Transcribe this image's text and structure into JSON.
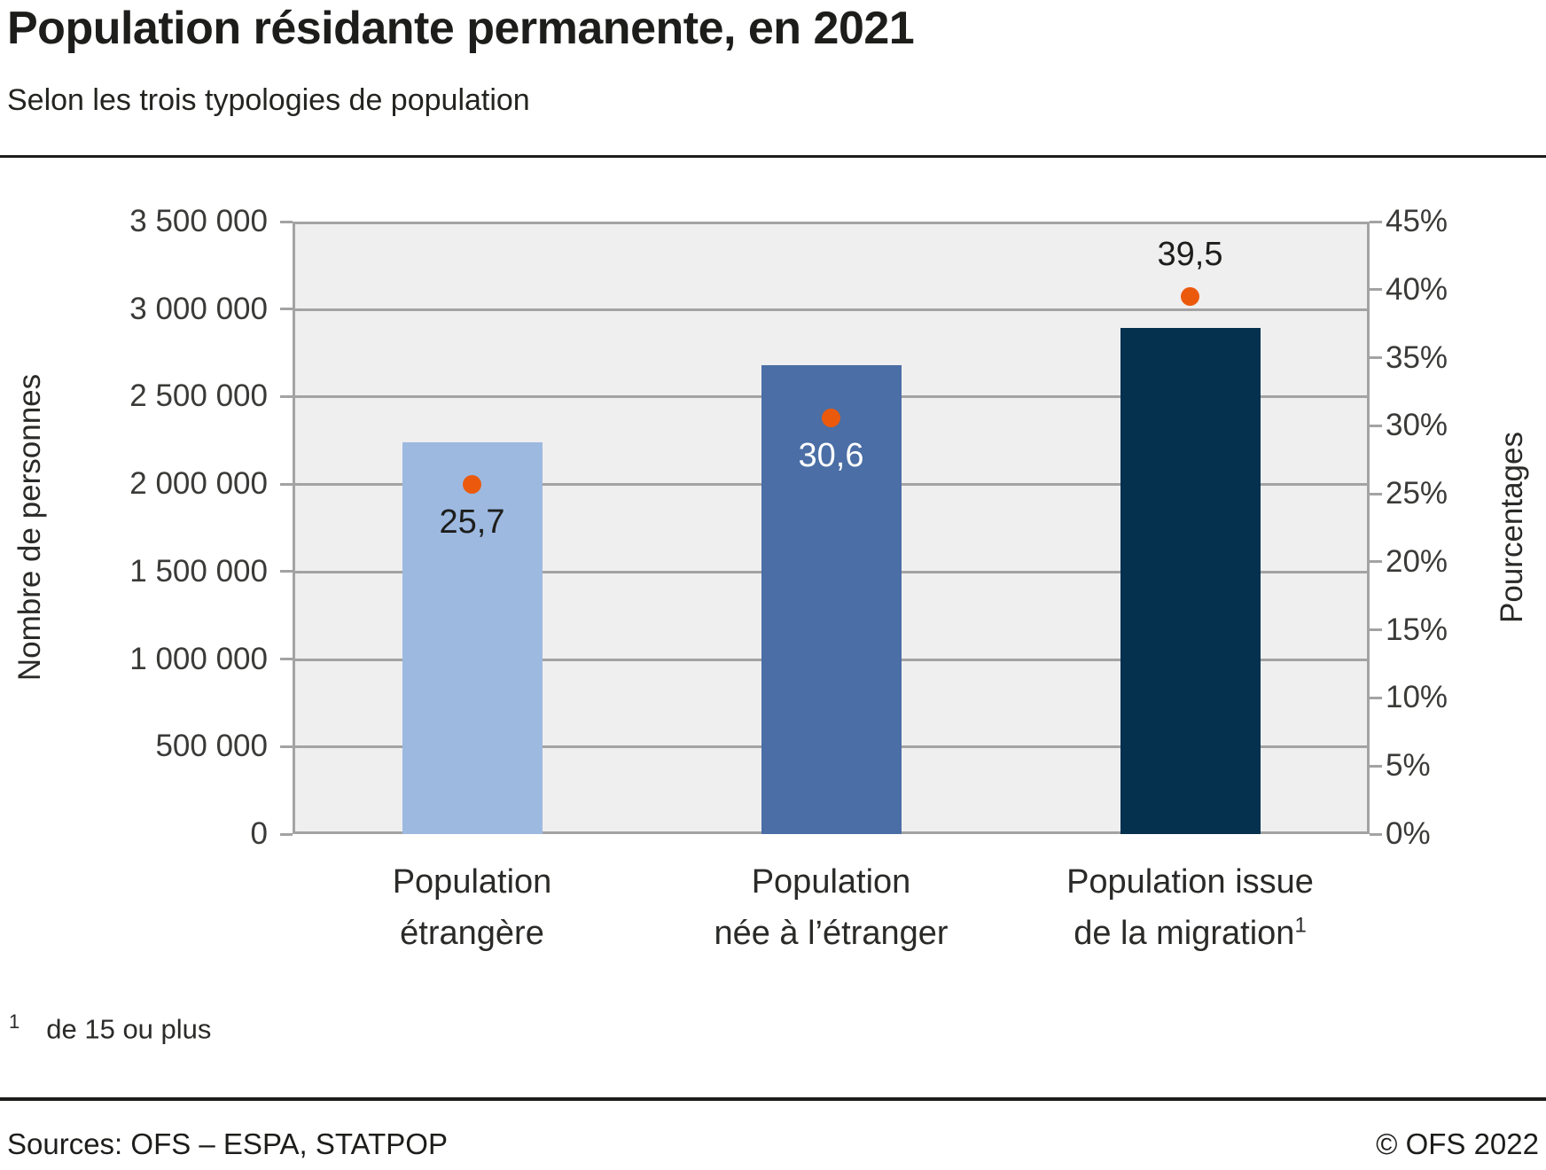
{
  "header": {
    "title": "Population résidante permanente, en 2021",
    "subtitle": "Selon les trois typologies de population"
  },
  "chart_data": {
    "type": "bar",
    "title": "Population résidante permanente, en 2021",
    "subtitle": "Selon les trois typologies de population",
    "categories": [
      {
        "line1": "Population",
        "line2": "étrangère",
        "sup": ""
      },
      {
        "line1": "Population",
        "line2": "née à l’étranger",
        "sup": ""
      },
      {
        "line1": "Population issue",
        "line2": "de la migration",
        "sup": "1"
      }
    ],
    "series": [
      {
        "name": "Nombre de personnes",
        "type": "bar",
        "axis": "left",
        "values": [
          2240000,
          2680000,
          2890000
        ]
      },
      {
        "name": "Pourcentages",
        "type": "point",
        "axis": "right",
        "values": [
          25.7,
          30.6,
          39.5
        ]
      }
    ],
    "point_labels": [
      "25,7",
      "30,6",
      "39,5"
    ],
    "point_label_side": [
      "below",
      "below",
      "above"
    ],
    "point_label_colors": [
      "#1d1d1b",
      "#ffffff",
      "#1d1d1b"
    ],
    "bar_colors": [
      "#9db9e0",
      "#4a6ea5",
      "#05304e"
    ],
    "left_axis": {
      "label": "Nombre de personnes",
      "min": 0,
      "max": 3500000,
      "step": 500000,
      "tick_labels": [
        "3 500 000",
        "3 000 000",
        "2 500 000",
        "2 000 000",
        "1 500 000",
        "1 000 000",
        "500 000",
        "0"
      ]
    },
    "right_axis": {
      "label": "Pourcentages",
      "min": 0,
      "max": 45,
      "step": 5,
      "tick_labels": [
        "45%",
        "40%",
        "35%",
        "30%",
        "25%",
        "20%",
        "15%",
        "10%",
        "5%",
        "0%"
      ]
    },
    "grid": "horizontal gridlines at left-axis 500 000 steps",
    "legend": "none"
  },
  "colors": {
    "plot_background": "#efefef",
    "grid_line": "#a3a3a3",
    "dot_orange": "#eb5a0c",
    "rule_black": "#1d1d1b"
  },
  "footnote": {
    "marker": "1",
    "text": "de 15 ou plus"
  },
  "footer": {
    "sources": "Sources: OFS – ESPA, STATPOP",
    "copyright": "© OFS 2022"
  }
}
